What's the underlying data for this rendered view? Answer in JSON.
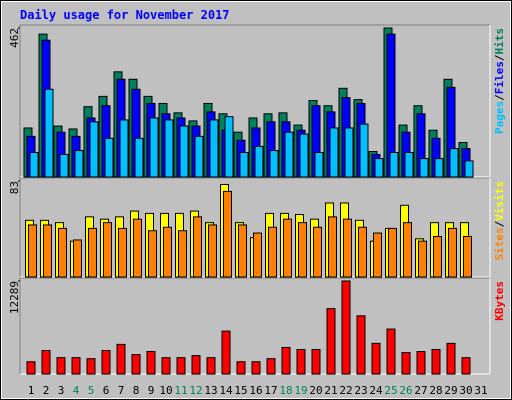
{
  "title": "Daily usage for November 2017",
  "separator": "/",
  "chart_data": [
    {
      "type": "bar",
      "ylim": [
        0,
        462
      ],
      "yticks": [
        462
      ],
      "series": [
        {
          "name": "Hits",
          "color": "#00805c",
          "values": [
            152,
            443,
            158,
            149,
            218,
            250,
            326,
            303,
            250,
            228,
            199,
            174,
            228,
            196,
            139,
            183,
            196,
            199,
            161,
            237,
            221,
            275,
            240,
            79,
            462,
            161,
            221,
            145,
            303,
            107,
            null
          ]
        },
        {
          "name": "Files",
          "color": "#0000ff",
          "values": [
            126,
            424,
            139,
            126,
            183,
            221,
            303,
            272,
            228,
            196,
            183,
            158,
            202,
            145,
            114,
            152,
            171,
            171,
            145,
            221,
            202,
            246,
            228,
            70,
            443,
            139,
            196,
            120,
            278,
            88,
            null
          ]
        },
        {
          "name": "Pages",
          "color": "#00c0ff",
          "values": [
            76,
            272,
            70,
            82,
            171,
            120,
            177,
            120,
            183,
            177,
            158,
            126,
            177,
            187,
            76,
            95,
            82,
            139,
            133,
            76,
            152,
            152,
            164,
            57,
            76,
            76,
            57,
            57,
            88,
            50,
            null
          ]
        }
      ]
    },
    {
      "type": "bar",
      "ylim": [
        0,
        83
      ],
      "yticks": [
        83
      ],
      "series": [
        {
          "name": "Visits",
          "color": "#ffff00",
          "values": [
            49,
            49,
            47,
            31,
            52,
            50,
            52,
            57,
            55,
            55,
            55,
            57,
            47,
            80,
            47,
            34,
            55,
            55,
            54,
            50,
            64,
            64,
            49,
            31,
            42,
            62,
            33,
            47,
            47,
            47,
            null
          ]
        },
        {
          "name": "Sites",
          "color": "#ff8000",
          "values": [
            45,
            45,
            42,
            32,
            42,
            47,
            42,
            50,
            40,
            43,
            40,
            52,
            45,
            74,
            45,
            38,
            43,
            50,
            47,
            43,
            52,
            50,
            43,
            38,
            42,
            47,
            31,
            35,
            42,
            35,
            null
          ]
        }
      ]
    },
    {
      "type": "bar",
      "ylim": [
        0,
        12289
      ],
      "yticks": [
        12289
      ],
      "categories": [
        "1",
        "2",
        "3",
        "4",
        "5",
        "6",
        "7",
        "8",
        "9",
        "10",
        "11",
        "12",
        "13",
        "14",
        "15",
        "16",
        "17",
        "18",
        "19",
        "20",
        "21",
        "22",
        "23",
        "24",
        "25",
        "26",
        "27",
        "28",
        "29",
        "30",
        "31"
      ],
      "category_colors": [
        "#000000",
        "#000000",
        "#000000",
        "#00805c",
        "#00805c",
        "#000000",
        "#000000",
        "#000000",
        "#000000",
        "#000000",
        "#00805c",
        "#00805c",
        "#000000",
        "#000000",
        "#000000",
        "#000000",
        "#000000",
        "#00805c",
        "#00805c",
        "#000000",
        "#000000",
        "#000000",
        "#000000",
        "#000000",
        "#00805c",
        "#00805c",
        "#000000",
        "#000000",
        "#000000",
        "#000000",
        "#000000"
      ],
      "series": [
        {
          "name": "KBytes",
          "color": "#ff0000",
          "values": [
            1620,
            3105,
            2160,
            2160,
            2025,
            3105,
            3915,
            2565,
            2970,
            2160,
            2160,
            2430,
            2160,
            5670,
            1620,
            1620,
            2025,
            3510,
            3240,
            3240,
            8640,
            12289,
            7695,
            4050,
            5940,
            2835,
            2970,
            3240,
            4050,
            2160,
            null
          ]
        }
      ]
    }
  ]
}
